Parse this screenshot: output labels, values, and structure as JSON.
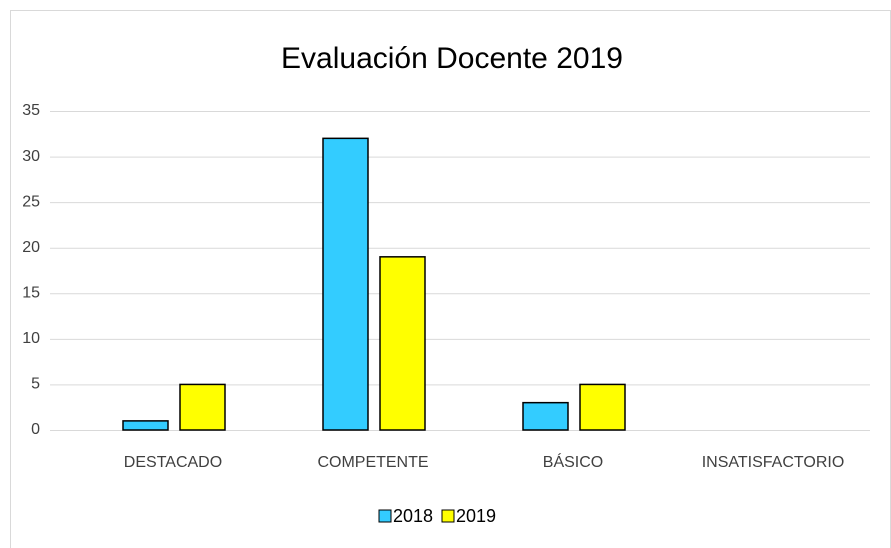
{
  "chart_data": {
    "type": "bar",
    "title": "Evaluación Docente 2019",
    "categories": [
      "DESTACADO",
      "COMPETENTE",
      "BÁSICO",
      "INSATISFACTORIO"
    ],
    "series": [
      {
        "name": "2018",
        "color": "#33ccff",
        "values": [
          1,
          32,
          3,
          0
        ]
      },
      {
        "name": "2019",
        "color": "#ffff00",
        "values": [
          5,
          19,
          5,
          0
        ]
      }
    ],
    "ylim": [
      0,
      35
    ],
    "yticks": [
      0,
      5,
      10,
      15,
      20,
      25,
      30,
      35
    ],
    "grid": true,
    "legend": "bottom"
  }
}
